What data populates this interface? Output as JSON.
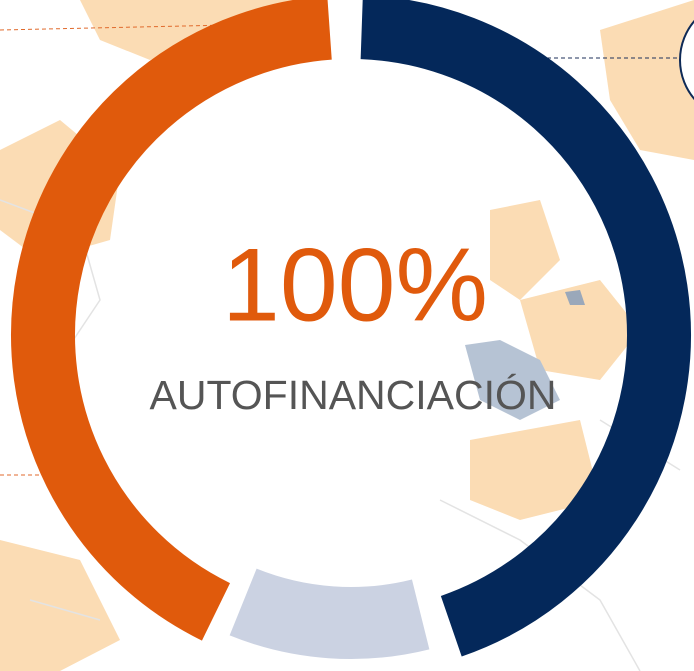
{
  "headline": {
    "value": "100%",
    "label": "AUTOFINANCIACIÓN"
  }
}
